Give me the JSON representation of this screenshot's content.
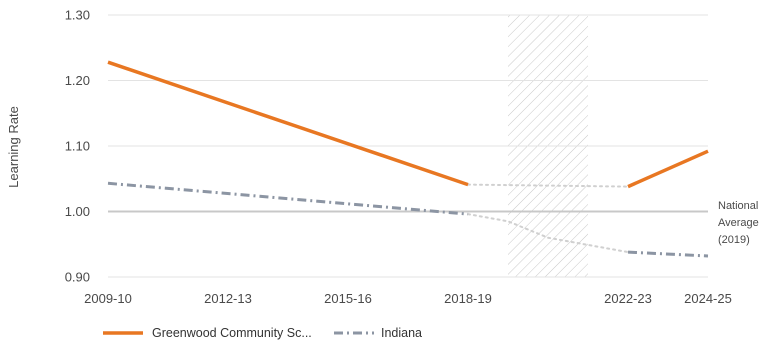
{
  "chart_data": {
    "type": "line",
    "title": "",
    "xlabel": "",
    "ylabel": "Learning Rate",
    "ylim": [
      0.9,
      1.3
    ],
    "y_ticks": [
      "0.90",
      "1.00",
      "1.10",
      "1.20",
      "1.30"
    ],
    "x_range": [
      2009,
      2024
    ],
    "x_ticks": [
      {
        "x": 2009,
        "label": "2009-10"
      },
      {
        "x": 2012,
        "label": "2012-13"
      },
      {
        "x": 2015,
        "label": "2015-16"
      },
      {
        "x": 2018,
        "label": "2018-19"
      },
      {
        "x": 2022,
        "label": "2022-23"
      },
      {
        "x": 2024,
        "label": "2024-25"
      }
    ],
    "grid": "horizontal",
    "hatched_period": [
      2019,
      2021
    ],
    "reference_line": {
      "y": 1.0,
      "label_lines": [
        "National",
        "Average",
        "(2019)"
      ]
    },
    "series": [
      {
        "name": "Greenwood Community Sc...",
        "color": "#E87722",
        "style": "solid",
        "segments": [
          [
            [
              2009,
              1.228
            ],
            [
              2018,
              1.041
            ]
          ],
          [
            [
              2022,
              1.038
            ],
            [
              2024,
              1.092
            ]
          ]
        ],
        "gap": [
          [
            2018,
            1.041
          ],
          [
            2022,
            1.038
          ]
        ]
      },
      {
        "name": "Indiana",
        "color": "#8C95A3",
        "style": "dashdot",
        "segments": [
          [
            [
              2009,
              1.043
            ],
            [
              2018,
              0.996
            ]
          ],
          [
            [
              2022,
              0.938
            ],
            [
              2024,
              0.932
            ]
          ]
        ],
        "gap": [
          [
            2018,
            0.996
          ],
          [
            2019,
            0.985
          ],
          [
            2020,
            0.96
          ],
          [
            2022,
            0.938
          ]
        ]
      }
    ],
    "legend": {
      "placement": "bottom-left"
    }
  }
}
